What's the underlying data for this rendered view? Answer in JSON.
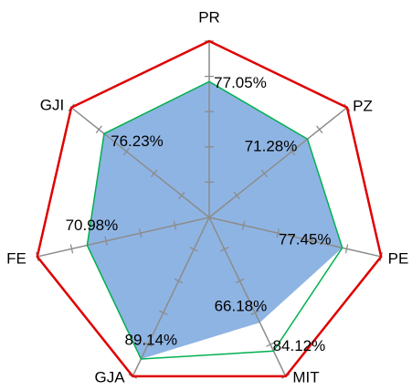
{
  "chart_data": {
    "type": "radar",
    "categories": [
      "PR",
      "PZ",
      "PE",
      "MIT",
      "GJA",
      "FE",
      "GJI"
    ],
    "rlim": [
      0,
      100
    ],
    "rticks": [
      0,
      20,
      40,
      60,
      80,
      100
    ],
    "series": [
      {
        "color": "#e00000",
        "fill": false,
        "values": [
          100,
          100,
          100,
          100,
          100,
          100,
          100
        ]
      },
      {
        "color": "#8eb4e3",
        "fill": true,
        "values": [
          77.05,
          71.28,
          77.45,
          66.18,
          89.14,
          70.98,
          76.23
        ],
        "value_labels": [
          "77.05%",
          "71.28%",
          "77.45%",
          "66.18%",
          "89.14%",
          "70.98%",
          "76.23%"
        ]
      },
      {
        "color": "#00b050",
        "fill": false,
        "values": [
          77.05,
          71.28,
          77.45,
          84.12,
          89.14,
          70.98,
          76.23
        ],
        "value_labels": [
          null,
          null,
          null,
          "84.12%",
          null,
          null,
          null
        ]
      }
    ]
  }
}
